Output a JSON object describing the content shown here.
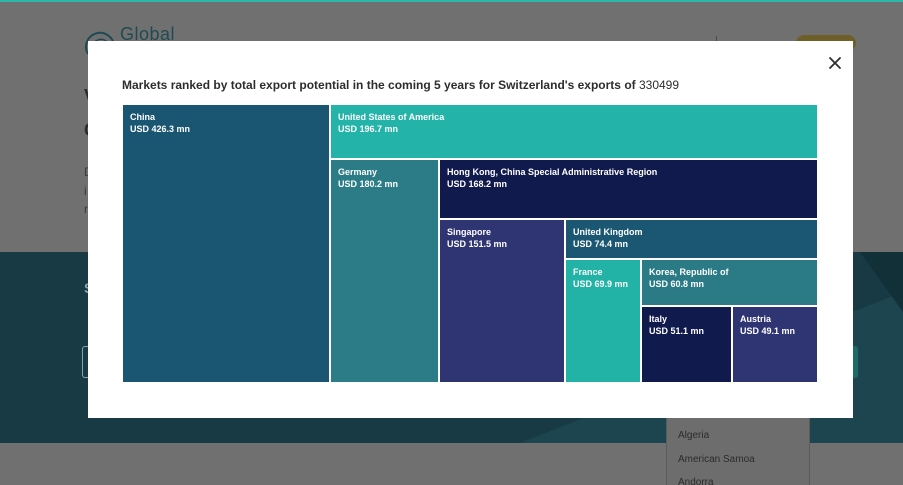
{
  "background": {
    "logo_text": "Global",
    "fragments": [
      "V",
      "C",
      "D",
      "i",
      "r",
      "S"
    ],
    "dropdown_options": [
      "Algeria",
      "American Samoa",
      "Andorra"
    ]
  },
  "modal": {
    "title_prefix": "Markets ranked by total export potential in the coming 5 years for Switzerland's exports of",
    "title_product_code": "330499",
    "close_icon": "close-icon"
  },
  "chart_data": {
    "type": "treemap",
    "unit": "USD mn",
    "items": [
      {
        "name": "China",
        "value": 426.3,
        "label": "USD 426.3 mn",
        "color": "#1a5672"
      },
      {
        "name": "United States of America",
        "value": 196.7,
        "label": "USD 196.7 mn",
        "color": "#24b3a8"
      },
      {
        "name": "Germany",
        "value": 180.2,
        "label": "USD 180.2 mn",
        "color": "#2b7c86"
      },
      {
        "name": "Hong Kong, China Special Administrative Region",
        "value": 168.2,
        "label": "USD 168.2 mn",
        "color": "#111a4c"
      },
      {
        "name": "Singapore",
        "value": 151.5,
        "label": "USD 151.5 mn",
        "color": "#2f3473"
      },
      {
        "name": "United Kingdom",
        "value": 74.4,
        "label": "USD 74.4 mn",
        "color": "#1b5773"
      },
      {
        "name": "France",
        "value": 69.9,
        "label": "USD 69.9 mn",
        "color": "#22b3a6"
      },
      {
        "name": "Korea, Republic of",
        "value": 60.8,
        "label": "USD 60.8 mn",
        "color": "#2a7b85"
      },
      {
        "name": "Italy",
        "value": 51.1,
        "label": "USD 51.1 mn",
        "color": "#111a4c"
      },
      {
        "name": "Austria",
        "value": 49.1,
        "label": "USD 49.1 mn",
        "color": "#2f3473"
      }
    ]
  }
}
